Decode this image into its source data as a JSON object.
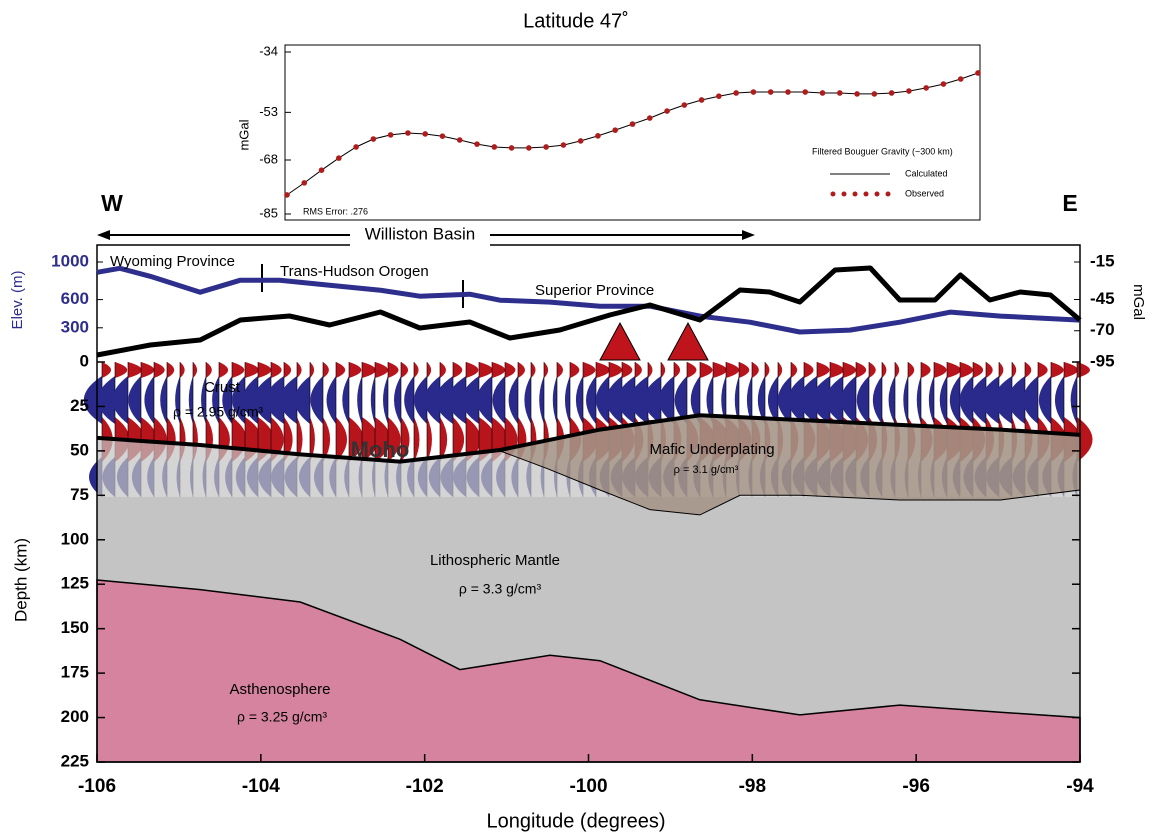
{
  "chart_data": [
    {
      "type": "line",
      "title": "Latitude 47˚",
      "ylabel": "mGal",
      "legend_title": "Filtered Bouguer Gravity (~300 km)",
      "annotation": "RMS Error: .276",
      "xlim": [
        -106,
        -94
      ],
      "ylim": [
        -85,
        -34
      ],
      "yticks": [
        -34,
        -53,
        -68,
        -85
      ],
      "x": [
        -106,
        -105.7,
        -105.4,
        -105.1,
        -104.8,
        -104.5,
        -104.2,
        -103.9,
        -103.6,
        -103.3,
        -103,
        -102.7,
        -102.4,
        -102.1,
        -101.8,
        -101.5,
        -101.2,
        -100.9,
        -100.6,
        -100.3,
        -100,
        -99.7,
        -99.4,
        -99.1,
        -98.8,
        -98.5,
        -98.2,
        -97.9,
        -97.6,
        -97.3,
        -97,
        -96.7,
        -96.4,
        -96.1,
        -95.8,
        -95.5,
        -95.2,
        -94.9,
        -94.6,
        -94.3,
        -94
      ],
      "series": [
        {
          "name": "Calculated",
          "color": "#000000",
          "style": "line",
          "values": [
            -79.0,
            -75.2,
            -71.2,
            -67.4,
            -63.9,
            -61.4,
            -60.1,
            -59.5,
            -59.8,
            -60.5,
            -61.7,
            -63.0,
            -63.9,
            -64.2,
            -64.2,
            -63.9,
            -63.3,
            -62.0,
            -60.4,
            -58.6,
            -56.7,
            -54.8,
            -52.6,
            -50.7,
            -49.1,
            -47.9,
            -46.9,
            -46.6,
            -46.6,
            -46.6,
            -46.6,
            -46.9,
            -46.9,
            -47.2,
            -47.2,
            -46.9,
            -46.3,
            -45.3,
            -44.1,
            -42.5,
            -40.6
          ]
        },
        {
          "name": "Observed",
          "color": "#b01c1c",
          "style": "dots",
          "values": [
            -79.0,
            -75.2,
            -71.2,
            -67.4,
            -63.9,
            -61.4,
            -60.1,
            -59.5,
            -59.8,
            -60.5,
            -61.7,
            -63.0,
            -63.9,
            -64.2,
            -64.2,
            -63.9,
            -63.3,
            -62.0,
            -60.4,
            -58.6,
            -56.7,
            -54.8,
            -52.6,
            -50.7,
            -49.1,
            -47.9,
            -46.9,
            -46.6,
            -46.6,
            -46.6,
            -46.6,
            -46.9,
            -46.9,
            -47.2,
            -47.2,
            -46.9,
            -46.3,
            -45.3,
            -44.1,
            -42.5,
            -40.6
          ]
        }
      ]
    },
    {
      "type": "cross-section",
      "xlabel": "Longitude (degrees)",
      "ylabel": "Depth (km)",
      "xlim": [
        -106,
        -94
      ],
      "xticks": [
        -106,
        -104,
        -102,
        -100,
        -98,
        -96,
        -94
      ],
      "ylim": [
        0,
        225
      ],
      "yticks": [
        0,
        25,
        50,
        75,
        100,
        125,
        150,
        175,
        200,
        225
      ],
      "west": "W",
      "east": "E",
      "basin": "Williston Basin",
      "provinces": [
        "Wyoming Province",
        "Trans-Hudson Orogen",
        "Superior Province"
      ],
      "elevation": {
        "label": "Elev. (m)",
        "color": "#2e2e8c",
        "lim": [
          0,
          1000
        ],
        "ticks": [
          1000,
          600,
          300
        ],
        "x": [
          -106,
          -105.72,
          -105.35,
          -104.74,
          -104.25,
          -103.77,
          -103.16,
          -102.54,
          -102.06,
          -101.45,
          -101.08,
          -100.47,
          -99.86,
          -99.25,
          -98.64,
          -98.03,
          -97.42,
          -96.81,
          -96.2,
          -95.58,
          -94.97,
          -94
        ],
        "values": [
          890,
          933,
          848,
          679,
          806,
          806,
          753,
          700,
          636,
          657,
          594,
          573,
          530,
          530,
          424,
          360,
          255,
          276,
          360,
          467,
          424,
          382
        ]
      },
      "gravity": {
        "label": "mGal",
        "color": "#000000",
        "lim": [
          -95,
          -15
        ],
        "ticks": [
          -15,
          -45,
          -70,
          -95
        ],
        "x": [
          -106,
          -105.35,
          -104.74,
          -104.25,
          -103.65,
          -103.16,
          -102.54,
          -102.06,
          -101.45,
          -100.96,
          -100.35,
          -99.74,
          -99.25,
          -98.64,
          -98.15,
          -97.79,
          -97.42,
          -96.99,
          -96.56,
          -96.2,
          -95.77,
          -95.46,
          -95.1,
          -94.73,
          -94.36,
          -94
        ],
        "values": [
          -89.4,
          -81.4,
          -77.4,
          -61.4,
          -58.2,
          -65.4,
          -55,
          -67.8,
          -63,
          -75.8,
          -69.4,
          -57.4,
          -49.4,
          -61.4,
          -37.4,
          -39,
          -47,
          -21.4,
          -19.8,
          -45.4,
          -45.4,
          -25.4,
          -45.4,
          -39,
          -41.4,
          -61.4
        ]
      },
      "crust": {
        "label": "Crust",
        "density": "ρ = 2.95 g/cm³"
      },
      "moho": {
        "label": "Moho",
        "x": [
          -106,
          -104.74,
          -103.52,
          -102.3,
          -101.08,
          -99.86,
          -98.64,
          -97.42,
          -96.2,
          -94.97,
          -94
        ],
        "values": [
          42.7,
          46.7,
          52,
          56,
          49.5,
          38,
          30,
          32.6,
          35.4,
          38,
          41
        ]
      },
      "underplating": {
        "label": "Mafic Underplating",
        "density": "ρ = 3.1 g/cm³",
        "x": [
          -101.08,
          -100.5,
          -99.86,
          -99.25,
          -98.64,
          -98.15,
          -97.42,
          -96.2,
          -94.97,
          -94
        ],
        "top": [
          49.5,
          44,
          38,
          33,
          30,
          31,
          32.6,
          35.4,
          38,
          41
        ],
        "bottom": [
          50,
          60,
          72,
          83,
          86,
          75,
          75,
          77.6,
          77.6,
          72
        ]
      },
      "mantle": {
        "label": "Lithospheric Mantle",
        "density": "ρ = 3.3 g/cm³"
      },
      "asthenosphere": {
        "label": "Asthenosphere",
        "density": "ρ = 3.25 g/cm³",
        "x": [
          -106,
          -104.74,
          -103.52,
          -102.3,
          -101.57,
          -100.47,
          -99.86,
          -98.64,
          -97.42,
          -96.2,
          -94.97,
          -94
        ],
        "top": [
          122.6,
          128,
          135,
          156,
          173,
          165,
          168,
          190,
          198.5,
          193,
          197,
          200
        ]
      }
    }
  ]
}
